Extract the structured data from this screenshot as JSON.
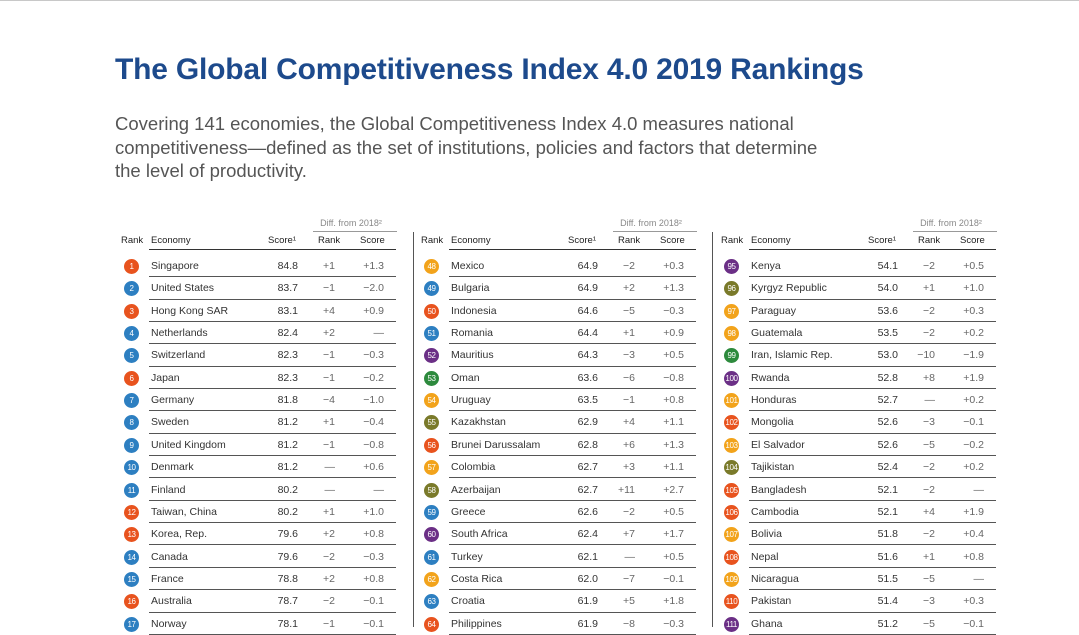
{
  "title": "The Global Competitiveness Index 4.0 2019 Rankings",
  "intro": [
    "Covering 141 economies, the Global Competitiveness Index 4.0 measures national",
    "competitiveness—defined as the set of institutions, policies and factors that determine",
    "the level of productivity."
  ],
  "headers": {
    "rank": "Rank",
    "economy": "Economy",
    "score": "Score¹",
    "diff_group": "Diff. from 2018²",
    "diff_rank": "Rank",
    "diff_score": "Score"
  },
  "colors": {
    "title": "#1d4a8c",
    "pillars": [
      "#e8531e",
      "#2d7fc1",
      "#f2a31b",
      "#6b2f86",
      "#2d8a3d",
      "#7a7a2a"
    ]
  },
  "tables": [
    [
      {
        "rank": "1",
        "economy": "Singapore",
        "score": "84.8",
        "drank": "+1",
        "dscore": "+1.3",
        "color": "#e8531e"
      },
      {
        "rank": "2",
        "economy": "United States",
        "score": "83.7",
        "drank": "−1",
        "dscore": "−2.0",
        "color": "#2d7fc1"
      },
      {
        "rank": "3",
        "economy": "Hong Kong SAR",
        "score": "83.1",
        "drank": "+4",
        "dscore": "+0.9",
        "color": "#e8531e"
      },
      {
        "rank": "4",
        "economy": "Netherlands",
        "score": "82.4",
        "drank": "+2",
        "dscore": "—",
        "color": "#2d7fc1"
      },
      {
        "rank": "5",
        "economy": "Switzerland",
        "score": "82.3",
        "drank": "−1",
        "dscore": "−0.3",
        "color": "#2d7fc1"
      },
      {
        "rank": "6",
        "economy": "Japan",
        "score": "82.3",
        "drank": "−1",
        "dscore": "−0.2",
        "color": "#e8531e"
      },
      {
        "rank": "7",
        "economy": "Germany",
        "score": "81.8",
        "drank": "−4",
        "dscore": "−1.0",
        "color": "#2d7fc1"
      },
      {
        "rank": "8",
        "economy": "Sweden",
        "score": "81.2",
        "drank": "+1",
        "dscore": "−0.4",
        "color": "#2d7fc1"
      },
      {
        "rank": "9",
        "economy": "United Kingdom",
        "score": "81.2",
        "drank": "−1",
        "dscore": "−0.8",
        "color": "#2d7fc1"
      },
      {
        "rank": "10",
        "economy": "Denmark",
        "score": "81.2",
        "drank": "—",
        "dscore": "+0.6",
        "color": "#2d7fc1"
      },
      {
        "rank": "11",
        "economy": "Finland",
        "score": "80.2",
        "drank": "—",
        "dscore": "—",
        "color": "#2d7fc1"
      },
      {
        "rank": "12",
        "economy": "Taiwan, China",
        "score": "80.2",
        "drank": "+1",
        "dscore": "+1.0",
        "color": "#e8531e"
      },
      {
        "rank": "13",
        "economy": "Korea, Rep.",
        "score": "79.6",
        "drank": "+2",
        "dscore": "+0.8",
        "color": "#e8531e"
      },
      {
        "rank": "14",
        "economy": "Canada",
        "score": "79.6",
        "drank": "−2",
        "dscore": "−0.3",
        "color": "#2d7fc1"
      },
      {
        "rank": "15",
        "economy": "France",
        "score": "78.8",
        "drank": "+2",
        "dscore": "+0.8",
        "color": "#2d7fc1"
      },
      {
        "rank": "16",
        "economy": "Australia",
        "score": "78.7",
        "drank": "−2",
        "dscore": "−0.1",
        "color": "#e8531e"
      },
      {
        "rank": "17",
        "economy": "Norway",
        "score": "78.1",
        "drank": "−1",
        "dscore": "−0.1",
        "color": "#2d7fc1"
      }
    ],
    [
      {
        "rank": "48",
        "economy": "Mexico",
        "score": "64.9",
        "drank": "−2",
        "dscore": "+0.3",
        "color": "#f2a31b"
      },
      {
        "rank": "49",
        "economy": "Bulgaria",
        "score": "64.9",
        "drank": "+2",
        "dscore": "+1.3",
        "color": "#2d7fc1"
      },
      {
        "rank": "50",
        "economy": "Indonesia",
        "score": "64.6",
        "drank": "−5",
        "dscore": "−0.3",
        "color": "#e8531e"
      },
      {
        "rank": "51",
        "economy": "Romania",
        "score": "64.4",
        "drank": "+1",
        "dscore": "+0.9",
        "color": "#2d7fc1"
      },
      {
        "rank": "52",
        "economy": "Mauritius",
        "score": "64.3",
        "drank": "−3",
        "dscore": "+0.5",
        "color": "#6b2f86"
      },
      {
        "rank": "53",
        "economy": "Oman",
        "score": "63.6",
        "drank": "−6",
        "dscore": "−0.8",
        "color": "#2d8a3d"
      },
      {
        "rank": "54",
        "economy": "Uruguay",
        "score": "63.5",
        "drank": "−1",
        "dscore": "+0.8",
        "color": "#f2a31b"
      },
      {
        "rank": "55",
        "economy": "Kazakhstan",
        "score": "62.9",
        "drank": "+4",
        "dscore": "+1.1",
        "color": "#7a7a2a"
      },
      {
        "rank": "56",
        "economy": "Brunei Darussalam",
        "score": "62.8",
        "drank": "+6",
        "dscore": "+1.3",
        "color": "#e8531e"
      },
      {
        "rank": "57",
        "economy": "Colombia",
        "score": "62.7",
        "drank": "+3",
        "dscore": "+1.1",
        "color": "#f2a31b"
      },
      {
        "rank": "58",
        "economy": "Azerbaijan",
        "score": "62.7",
        "drank": "+11",
        "dscore": "+2.7",
        "color": "#7a7a2a"
      },
      {
        "rank": "59",
        "economy": "Greece",
        "score": "62.6",
        "drank": "−2",
        "dscore": "+0.5",
        "color": "#2d7fc1"
      },
      {
        "rank": "60",
        "economy": "South Africa",
        "score": "62.4",
        "drank": "+7",
        "dscore": "+1.7",
        "color": "#6b2f86"
      },
      {
        "rank": "61",
        "economy": "Turkey",
        "score": "62.1",
        "drank": "—",
        "dscore": "+0.5",
        "color": "#2d7fc1"
      },
      {
        "rank": "62",
        "economy": "Costa Rica",
        "score": "62.0",
        "drank": "−7",
        "dscore": "−0.1",
        "color": "#f2a31b"
      },
      {
        "rank": "63",
        "economy": "Croatia",
        "score": "61.9",
        "drank": "+5",
        "dscore": "+1.8",
        "color": "#2d7fc1"
      },
      {
        "rank": "64",
        "economy": "Philippines",
        "score": "61.9",
        "drank": "−8",
        "dscore": "−0.3",
        "color": "#e8531e"
      }
    ],
    [
      {
        "rank": "95",
        "economy": "Kenya",
        "score": "54.1",
        "drank": "−2",
        "dscore": "+0.5",
        "color": "#6b2f86"
      },
      {
        "rank": "96",
        "economy": "Kyrgyz Republic",
        "score": "54.0",
        "drank": "+1",
        "dscore": "+1.0",
        "color": "#7a7a2a"
      },
      {
        "rank": "97",
        "economy": "Paraguay",
        "score": "53.6",
        "drank": "−2",
        "dscore": "+0.3",
        "color": "#f2a31b"
      },
      {
        "rank": "98",
        "economy": "Guatemala",
        "score": "53.5",
        "drank": "−2",
        "dscore": "+0.2",
        "color": "#f2a31b"
      },
      {
        "rank": "99",
        "economy": "Iran, Islamic Rep.",
        "score": "53.0",
        "drank": "−10",
        "dscore": "−1.9",
        "color": "#2d8a3d"
      },
      {
        "rank": "100",
        "economy": "Rwanda",
        "score": "52.8",
        "drank": "+8",
        "dscore": "+1.9",
        "color": "#6b2f86"
      },
      {
        "rank": "101",
        "economy": "Honduras",
        "score": "52.7",
        "drank": "—",
        "dscore": "+0.2",
        "color": "#f2a31b"
      },
      {
        "rank": "102",
        "economy": "Mongolia",
        "score": "52.6",
        "drank": "−3",
        "dscore": "−0.1",
        "color": "#e8531e"
      },
      {
        "rank": "103",
        "economy": "El Salvador",
        "score": "52.6",
        "drank": "−5",
        "dscore": "−0.2",
        "color": "#f2a31b"
      },
      {
        "rank": "104",
        "economy": "Tajikistan",
        "score": "52.4",
        "drank": "−2",
        "dscore": "+0.2",
        "color": "#7a7a2a"
      },
      {
        "rank": "105",
        "economy": "Bangladesh",
        "score": "52.1",
        "drank": "−2",
        "dscore": "—",
        "color": "#e8531e"
      },
      {
        "rank": "106",
        "economy": "Cambodia",
        "score": "52.1",
        "drank": "+4",
        "dscore": "+1.9",
        "color": "#e8531e"
      },
      {
        "rank": "107",
        "economy": "Bolivia",
        "score": "51.8",
        "drank": "−2",
        "dscore": "+0.4",
        "color": "#f2a31b"
      },
      {
        "rank": "108",
        "economy": "Nepal",
        "score": "51.6",
        "drank": "+1",
        "dscore": "+0.8",
        "color": "#e8531e"
      },
      {
        "rank": "109",
        "economy": "Nicaragua",
        "score": "51.5",
        "drank": "−5",
        "dscore": "—",
        "color": "#f2a31b"
      },
      {
        "rank": "110",
        "economy": "Pakistan",
        "score": "51.4",
        "drank": "−3",
        "dscore": "+0.3",
        "color": "#e8531e"
      },
      {
        "rank": "111",
        "economy": "Ghana",
        "score": "51.2",
        "drank": "−5",
        "dscore": "−0.1",
        "color": "#6b2f86"
      }
    ]
  ]
}
